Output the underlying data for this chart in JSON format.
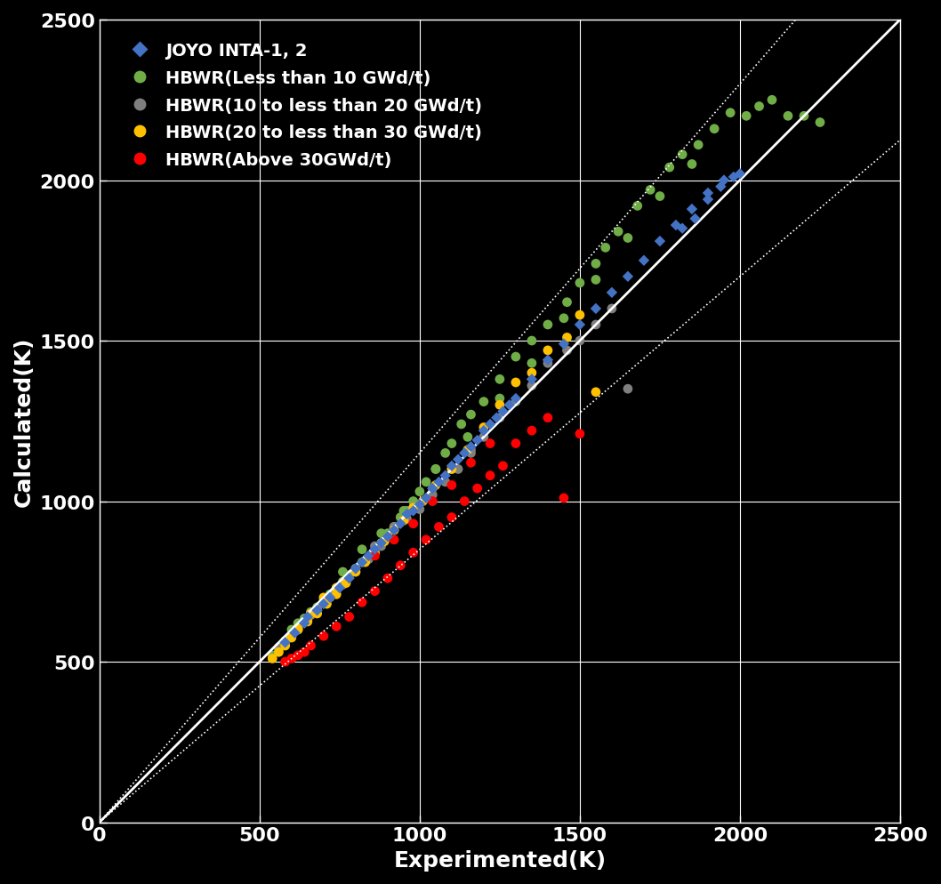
{
  "background_color": "#000000",
  "axes_color": "#000000",
  "text_color": "#ffffff",
  "grid_color": "#ffffff",
  "xlim": [
    0,
    2500
  ],
  "ylim": [
    0,
    2500
  ],
  "xticks": [
    0,
    500,
    1000,
    1500,
    2000,
    2500
  ],
  "yticks": [
    0,
    500,
    1000,
    1500,
    2000,
    2500
  ],
  "xlabel": "Experimented(K)",
  "ylabel": "Calculated(K)",
  "title": "",
  "legend_labels": [
    "JOYO INTA-1, 2",
    "HBWR(Less than 10 GWd/t)",
    "HBWR(10 to less than 20 GWd/t)",
    "HBWR(20 to less than 30 GWd/t)",
    "HBWR(Above 30GWd/t)"
  ],
  "legend_colors": [
    "#4472c4",
    "#70ad47",
    "#7f7f7f",
    "#ffc000",
    "#ff0000"
  ],
  "series": {
    "joyo": {
      "color": "#4472c4",
      "marker": "D",
      "size": 40,
      "x": [
        580,
        610,
        640,
        650,
        680,
        700,
        720,
        750,
        780,
        800,
        820,
        840,
        860,
        880,
        900,
        920,
        940,
        960,
        980,
        1000,
        1020,
        1040,
        1060,
        1080,
        1100,
        1120,
        1140,
        1160,
        1180,
        1200,
        1220,
        1240,
        1260,
        1280,
        1300,
        1350,
        1400,
        1450,
        1500,
        1550,
        1600,
        1650,
        1700,
        1750,
        1800,
        1850,
        1900,
        1950,
        2000,
        1820,
        1860,
        1900,
        1940,
        1980
      ],
      "y": [
        560,
        590,
        620,
        640,
        660,
        680,
        700,
        730,
        760,
        790,
        810,
        830,
        850,
        870,
        890,
        910,
        930,
        960,
        970,
        990,
        1010,
        1040,
        1060,
        1080,
        1110,
        1130,
        1150,
        1170,
        1190,
        1220,
        1240,
        1260,
        1280,
        1300,
        1320,
        1380,
        1440,
        1490,
        1550,
        1600,
        1650,
        1700,
        1750,
        1810,
        1860,
        1910,
        1960,
        2000,
        2020,
        1850,
        1880,
        1940,
        1980,
        2010
      ]
    },
    "hbwr_lt10": {
      "color": "#70ad47",
      "marker": "o",
      "size": 60,
      "x": [
        540,
        560,
        580,
        600,
        620,
        640,
        660,
        680,
        700,
        720,
        740,
        760,
        780,
        800,
        820,
        840,
        860,
        880,
        900,
        920,
        940,
        960,
        980,
        1000,
        1020,
        1050,
        1080,
        1100,
        1130,
        1160,
        1200,
        1250,
        1300,
        1350,
        1400,
        1460,
        1500,
        1550,
        1580,
        1620,
        1680,
        1720,
        1780,
        1820,
        1870,
        1920,
        1970,
        2020,
        2060,
        2100,
        2150,
        760,
        820,
        880,
        950,
        1050,
        1150,
        1250,
        1350,
        1450,
        1550,
        1650,
        1750,
        1850,
        2200,
        2250
      ],
      "y": [
        520,
        545,
        565,
        600,
        620,
        635,
        655,
        670,
        690,
        710,
        730,
        750,
        770,
        790,
        810,
        820,
        840,
        870,
        900,
        920,
        950,
        970,
        1000,
        1030,
        1060,
        1100,
        1150,
        1180,
        1240,
        1270,
        1310,
        1380,
        1450,
        1500,
        1550,
        1620,
        1680,
        1740,
        1790,
        1840,
        1920,
        1970,
        2040,
        2080,
        2110,
        2160,
        2210,
        2200,
        2230,
        2250,
        2200,
        780,
        850,
        900,
        970,
        1100,
        1200,
        1320,
        1430,
        1570,
        1690,
        1820,
        1950,
        2050,
        2200,
        2180
      ]
    },
    "hbwr_10to20": {
      "color": "#7f7f7f",
      "marker": "o",
      "size": 60,
      "x": [
        560,
        580,
        600,
        620,
        640,
        660,
        680,
        720,
        760,
        800,
        840,
        880,
        920,
        960,
        1000,
        1040,
        1080,
        1120,
        1160,
        1200,
        1250,
        1300,
        1350,
        1400,
        1460,
        1500,
        1550,
        1600,
        1650,
        800,
        860,
        920,
        980,
        1040,
        1100,
        1160
      ],
      "y": [
        540,
        560,
        580,
        600,
        625,
        645,
        665,
        700,
        740,
        780,
        820,
        860,
        910,
        945,
        975,
        1020,
        1060,
        1100,
        1150,
        1200,
        1260,
        1310,
        1360,
        1430,
        1470,
        1500,
        1550,
        1600,
        1350,
        790,
        860,
        920,
        980,
        1040,
        1100,
        1160
      ]
    },
    "hbwr_20to30": {
      "color": "#ffc000",
      "marker": "o",
      "size": 60,
      "x": [
        540,
        560,
        580,
        600,
        620,
        650,
        680,
        710,
        740,
        770,
        800,
        830,
        860,
        890,
        920,
        950,
        980,
        1010,
        1050,
        1100,
        1150,
        1200,
        1250,
        1300,
        1350,
        1400,
        1460,
        1500,
        1550,
        580,
        620,
        660,
        700,
        740
      ],
      "y": [
        510,
        530,
        550,
        575,
        600,
        625,
        650,
        680,
        710,
        745,
        780,
        810,
        840,
        875,
        910,
        940,
        980,
        1000,
        1050,
        1100,
        1160,
        1230,
        1300,
        1370,
        1400,
        1470,
        1510,
        1580,
        1340,
        565,
        605,
        650,
        700,
        730
      ]
    },
    "hbwr_gt30": {
      "color": "#ff0000",
      "marker": "o",
      "size": 60,
      "x": [
        580,
        600,
        620,
        640,
        660,
        700,
        740,
        780,
        820,
        860,
        900,
        940,
        980,
        1020,
        1060,
        1100,
        1140,
        1180,
        1220,
        1260,
        1300,
        1350,
        1400,
        1450,
        1500,
        860,
        920,
        980,
        1040,
        1100,
        1160,
        1220
      ],
      "y": [
        500,
        510,
        520,
        530,
        550,
        580,
        610,
        640,
        685,
        720,
        760,
        800,
        840,
        880,
        920,
        950,
        1000,
        1040,
        1080,
        1110,
        1180,
        1220,
        1260,
        1010,
        1210,
        830,
        880,
        930,
        1000,
        1050,
        1120,
        1180
      ]
    }
  }
}
